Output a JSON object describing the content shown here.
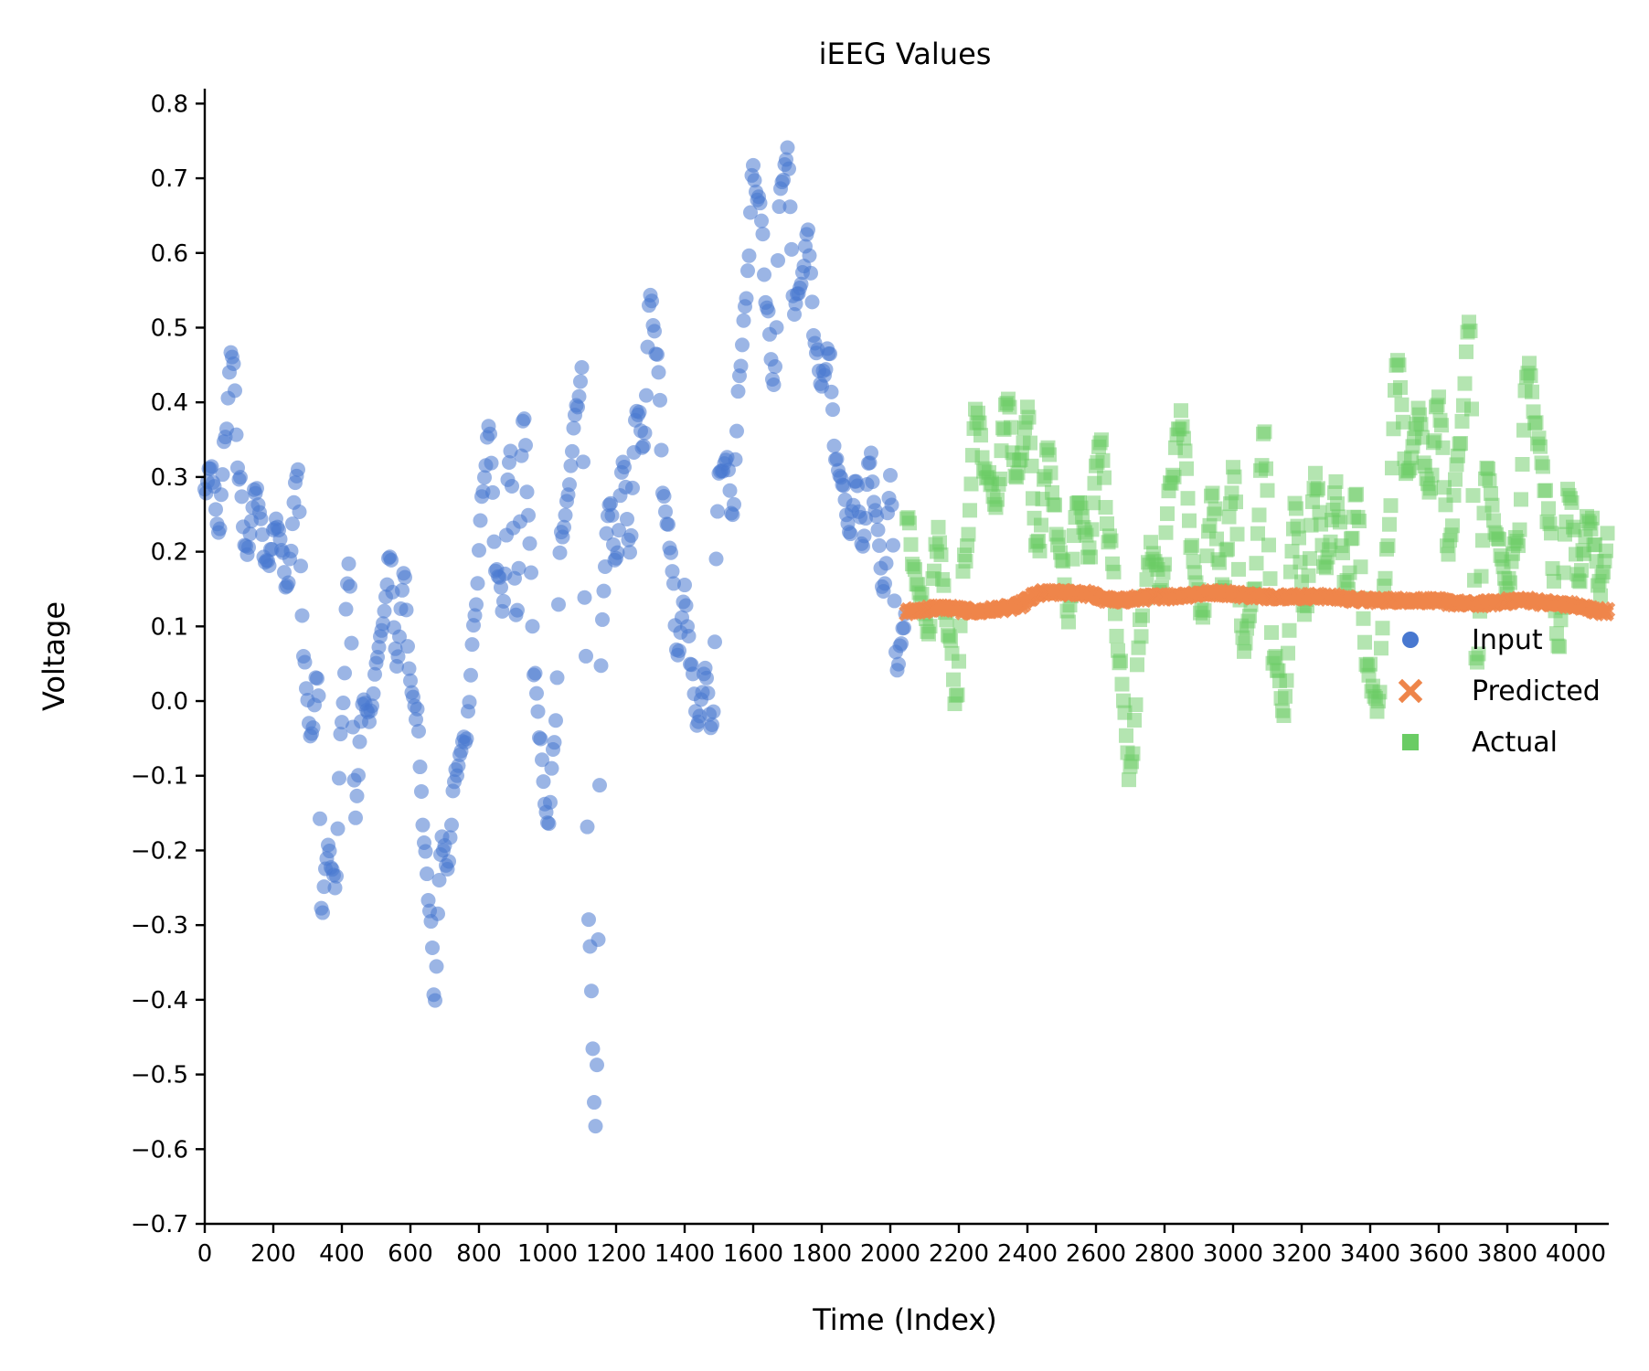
{
  "chart_data": {
    "type": "scatter",
    "title": "iEEG Values",
    "xlabel": "Time (Index)",
    "ylabel": "Voltage",
    "xlim": [
      0,
      4096
    ],
    "ylim": [
      -0.7,
      0.82
    ],
    "x_ticks": [
      0,
      200,
      400,
      600,
      800,
      1000,
      1200,
      1400,
      1600,
      1800,
      2000,
      2200,
      2400,
      2600,
      2800,
      3000,
      3200,
      3400,
      3600,
      3800,
      4000
    ],
    "x_tick_labels": [
      "0",
      "200",
      "400",
      "600",
      "800",
      "1000",
      "1200",
      "1400",
      "1600",
      "1800",
      "2000",
      "2200",
      "2400",
      "2600",
      "2800",
      "3000",
      "3200",
      "3400",
      "3600",
      "3800",
      "4000"
    ],
    "y_ticks": [
      0.8,
      0.7,
      0.6,
      0.5,
      0.4,
      0.3,
      0.2,
      0.1,
      0.0,
      -0.1,
      -0.2,
      -0.3,
      -0.4,
      -0.5,
      -0.6,
      -0.7
    ],
    "y_tick_labels": [
      "0.8",
      "0.7",
      "0.6",
      "0.5",
      "0.4",
      "0.3",
      "0.2",
      "0.1",
      "0.0",
      "−0.1",
      "−0.2",
      "−0.3",
      "−0.4",
      "−0.5",
      "−0.6",
      "−0.7"
    ],
    "grid": false,
    "legend_position": "right",
    "series": [
      {
        "name": "Input",
        "marker": "circle",
        "color": "#4878d0",
        "x_range": [
          0,
          2047
        ],
        "keypoints": [
          [
            0,
            0.28
          ],
          [
            20,
            0.31
          ],
          [
            40,
            0.22
          ],
          [
            60,
            0.36
          ],
          [
            80,
            0.47
          ],
          [
            100,
            0.3
          ],
          [
            120,
            0.2
          ],
          [
            150,
            0.28
          ],
          [
            180,
            0.18
          ],
          [
            210,
            0.24
          ],
          [
            240,
            0.16
          ],
          [
            270,
            0.31
          ],
          [
            290,
            0.05
          ],
          [
            310,
            -0.05
          ],
          [
            330,
            0.04
          ],
          [
            340,
            -0.28
          ],
          [
            360,
            -0.2
          ],
          [
            380,
            -0.25
          ],
          [
            400,
            -0.03
          ],
          [
            420,
            0.19
          ],
          [
            440,
            -0.15
          ],
          [
            460,
            0.0
          ],
          [
            480,
            -0.03
          ],
          [
            500,
            0.05
          ],
          [
            520,
            0.1
          ],
          [
            540,
            0.2
          ],
          [
            560,
            0.05
          ],
          [
            580,
            0.17
          ],
          [
            600,
            0.02
          ],
          [
            620,
            -0.02
          ],
          [
            640,
            -0.18
          ],
          [
            660,
            -0.3
          ],
          [
            670,
            -0.4
          ],
          [
            690,
            -0.19
          ],
          [
            710,
            -0.22
          ],
          [
            730,
            -0.1
          ],
          [
            760,
            -0.05
          ],
          [
            790,
            0.12
          ],
          [
            810,
            0.28
          ],
          [
            830,
            0.36
          ],
          [
            850,
            0.18
          ],
          [
            870,
            0.13
          ],
          [
            890,
            0.33
          ],
          [
            910,
            0.11
          ],
          [
            930,
            0.38
          ],
          [
            950,
            0.2
          ],
          [
            960,
            0.04
          ],
          [
            980,
            -0.06
          ],
          [
            1000,
            -0.17
          ],
          [
            1020,
            -0.06
          ],
          [
            1040,
            0.22
          ],
          [
            1060,
            0.28
          ],
          [
            1080,
            0.38
          ],
          [
            1100,
            0.44
          ],
          [
            1110,
            0.1
          ],
          [
            1120,
            -0.3
          ],
          [
            1140,
            -0.56
          ],
          [
            1160,
            0.12
          ],
          [
            1180,
            0.27
          ],
          [
            1200,
            0.18
          ],
          [
            1220,
            0.32
          ],
          [
            1240,
            0.21
          ],
          [
            1260,
            0.4
          ],
          [
            1280,
            0.33
          ],
          [
            1300,
            0.54
          ],
          [
            1320,
            0.46
          ],
          [
            1340,
            0.27
          ],
          [
            1360,
            0.2
          ],
          [
            1380,
            0.05
          ],
          [
            1400,
            0.15
          ],
          [
            1420,
            0.04
          ],
          [
            1440,
            -0.03
          ],
          [
            1460,
            0.05
          ],
          [
            1480,
            -0.04
          ],
          [
            1500,
            0.3
          ],
          [
            1520,
            0.33
          ],
          [
            1540,
            0.25
          ],
          [
            1560,
            0.44
          ],
          [
            1580,
            0.55
          ],
          [
            1600,
            0.71
          ],
          [
            1620,
            0.66
          ],
          [
            1640,
            0.53
          ],
          [
            1660,
            0.42
          ],
          [
            1680,
            0.68
          ],
          [
            1700,
            0.74
          ],
          [
            1720,
            0.52
          ],
          [
            1740,
            0.56
          ],
          [
            1760,
            0.62
          ],
          [
            1780,
            0.48
          ],
          [
            1800,
            0.43
          ],
          [
            1820,
            0.47
          ],
          [
            1840,
            0.33
          ],
          [
            1860,
            0.29
          ],
          [
            1880,
            0.22
          ],
          [
            1900,
            0.3
          ],
          [
            1920,
            0.2
          ],
          [
            1940,
            0.33
          ],
          [
            1960,
            0.25
          ],
          [
            1980,
            0.14
          ],
          [
            2000,
            0.3
          ],
          [
            2020,
            0.05
          ],
          [
            2047,
            0.11
          ]
        ]
      },
      {
        "name": "Predicted",
        "marker": "x",
        "color": "#ee854a",
        "x_range": [
          2048,
          4095
        ],
        "keypoints": [
          [
            2048,
            0.12
          ],
          [
            2150,
            0.125
          ],
          [
            2250,
            0.12
          ],
          [
            2350,
            0.125
          ],
          [
            2450,
            0.145
          ],
          [
            2550,
            0.145
          ],
          [
            2650,
            0.135
          ],
          [
            2800,
            0.14
          ],
          [
            2950,
            0.145
          ],
          [
            3100,
            0.14
          ],
          [
            3250,
            0.14
          ],
          [
            3400,
            0.135
          ],
          [
            3550,
            0.135
          ],
          [
            3700,
            0.13
          ],
          [
            3850,
            0.135
          ],
          [
            3950,
            0.13
          ],
          [
            4095,
            0.12
          ]
        ]
      },
      {
        "name": "Actual",
        "marker": "square",
        "color": "#6acc64",
        "x_range": [
          2048,
          4095
        ],
        "keypoints": [
          [
            2048,
            0.24
          ],
          [
            2080,
            0.15
          ],
          [
            2110,
            0.1
          ],
          [
            2140,
            0.22
          ],
          [
            2170,
            0.1
          ],
          [
            2190,
            0.0
          ],
          [
            2220,
            0.2
          ],
          [
            2250,
            0.38
          ],
          [
            2280,
            0.3
          ],
          [
            2310,
            0.27
          ],
          [
            2340,
            0.4
          ],
          [
            2370,
            0.3
          ],
          [
            2400,
            0.38
          ],
          [
            2430,
            0.2
          ],
          [
            2460,
            0.33
          ],
          [
            2490,
            0.22
          ],
          [
            2520,
            0.12
          ],
          [
            2550,
            0.28
          ],
          [
            2580,
            0.2
          ],
          [
            2610,
            0.35
          ],
          [
            2640,
            0.22
          ],
          [
            2670,
            0.05
          ],
          [
            2700,
            -0.1
          ],
          [
            2730,
            0.1
          ],
          [
            2760,
            0.2
          ],
          [
            2790,
            0.15
          ],
          [
            2820,
            0.3
          ],
          [
            2850,
            0.38
          ],
          [
            2880,
            0.2
          ],
          [
            2910,
            0.12
          ],
          [
            2940,
            0.27
          ],
          [
            2970,
            0.15
          ],
          [
            3000,
            0.3
          ],
          [
            3030,
            0.08
          ],
          [
            3060,
            0.15
          ],
          [
            3090,
            0.35
          ],
          [
            3120,
            0.05
          ],
          [
            3150,
            -0.01
          ],
          [
            3180,
            0.25
          ],
          [
            3210,
            0.12
          ],
          [
            3240,
            0.3
          ],
          [
            3270,
            0.18
          ],
          [
            3300,
            0.28
          ],
          [
            3330,
            0.15
          ],
          [
            3360,
            0.27
          ],
          [
            3390,
            0.05
          ],
          [
            3420,
            -0.01
          ],
          [
            3450,
            0.2
          ],
          [
            3480,
            0.45
          ],
          [
            3510,
            0.3
          ],
          [
            3540,
            0.38
          ],
          [
            3570,
            0.28
          ],
          [
            3600,
            0.4
          ],
          [
            3630,
            0.2
          ],
          [
            3660,
            0.35
          ],
          [
            3690,
            0.5
          ],
          [
            3710,
            0.05
          ],
          [
            3740,
            0.3
          ],
          [
            3770,
            0.22
          ],
          [
            3800,
            0.15
          ],
          [
            3830,
            0.22
          ],
          [
            3860,
            0.45
          ],
          [
            3890,
            0.35
          ],
          [
            3920,
            0.25
          ],
          [
            3950,
            0.08
          ],
          [
            3980,
            0.28
          ],
          [
            4010,
            0.17
          ],
          [
            4040,
            0.25
          ],
          [
            4070,
            0.15
          ],
          [
            4095,
            0.22
          ]
        ]
      }
    ]
  }
}
